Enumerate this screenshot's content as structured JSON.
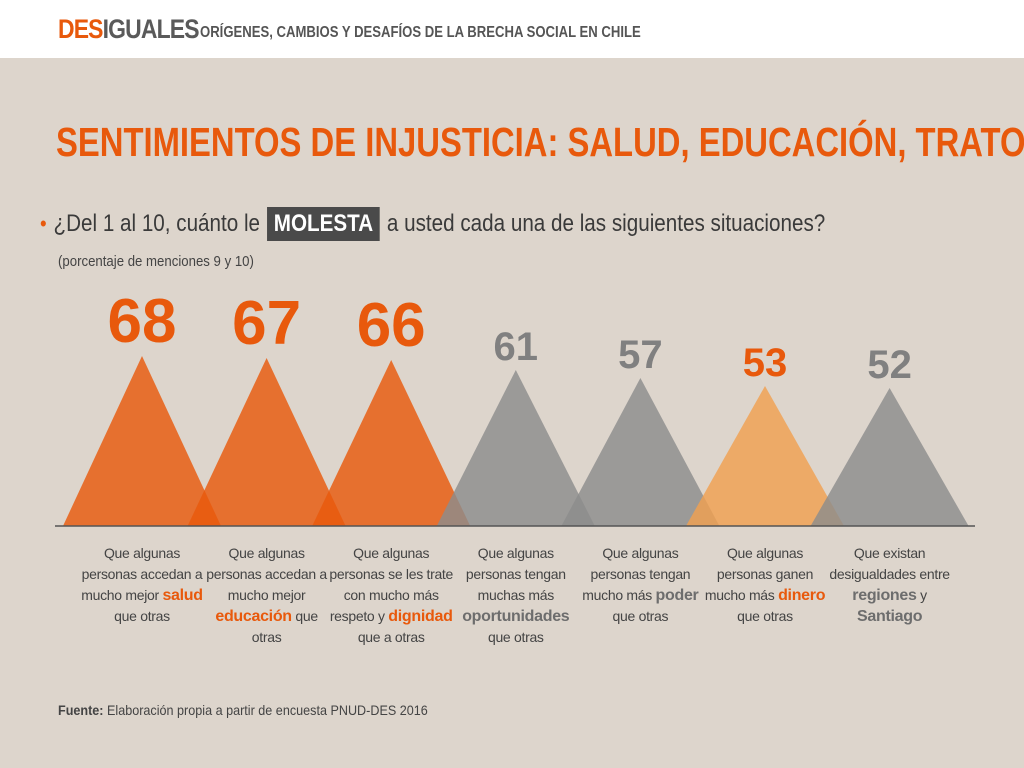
{
  "header": {
    "brand_part1": "DES",
    "brand_part2": "IGUALES",
    "subtitle": "ORÍGENES, CAMBIOS Y DESAFÍOS DE LA BRECHA SOCIAL EN CHILE"
  },
  "title": "SENTIMIENTOS DE INJUSTICIA: SALUD, EDUCACIÓN, TRATO",
  "question": {
    "bullet": "•",
    "before": "¿Del 1 al 10, cuánto le",
    "highlight": "MOLESTA",
    "after": "a usted cada una de las siguientes situaciones?"
  },
  "note": "(porcentaje de menciones 9 y 10)",
  "chart_data": {
    "type": "bar",
    "shape": "triangle",
    "values": [
      68,
      67,
      66,
      61,
      57,
      53,
      52
    ],
    "colors": [
      "#e8590c",
      "#e8590c",
      "#e8590c",
      "#8c8c8c",
      "#8c8c8c",
      "#f0a050",
      "#8c8c8c"
    ],
    "label_colors": [
      "#e8590c",
      "#e8590c",
      "#e8590c",
      "#808080",
      "#808080",
      "#e8590c",
      "#808080"
    ],
    "categories": [
      {
        "pre": "Que algunas personas accedan a mucho mejor",
        "key": "salud",
        "post": "que otras"
      },
      {
        "pre": "Que algunas personas accedan a mucho mejor",
        "key": "educación",
        "post": "que otras"
      },
      {
        "pre": "Que algunas personas se les trate con mucho más respeto y",
        "key": "dignidad",
        "post": "que a otras"
      },
      {
        "pre": "Que algunas personas tengan muchas más",
        "key": "oportunidades",
        "post": "que otras"
      },
      {
        "pre": "Que algunas personas tengan mucho más",
        "key": "poder",
        "post": "que otras"
      },
      {
        "pre": "Que algunas personas ganen mucho más",
        "key": "dinero",
        "post": "que otras"
      },
      {
        "pre": "Que existan desigualdades entre",
        "key": "regiones",
        "mid": "y",
        "key2": "Santiago",
        "post": ""
      }
    ],
    "key_colors": [
      "#e8590c",
      "#e8590c",
      "#e8590c",
      "#6d6d6d",
      "#6d6d6d",
      "#e8590c",
      "#6d6d6d"
    ]
  },
  "source": {
    "label": "Fuente:",
    "text": "Elaboración propia a partir de encuesta PNUD-DES 2016"
  }
}
